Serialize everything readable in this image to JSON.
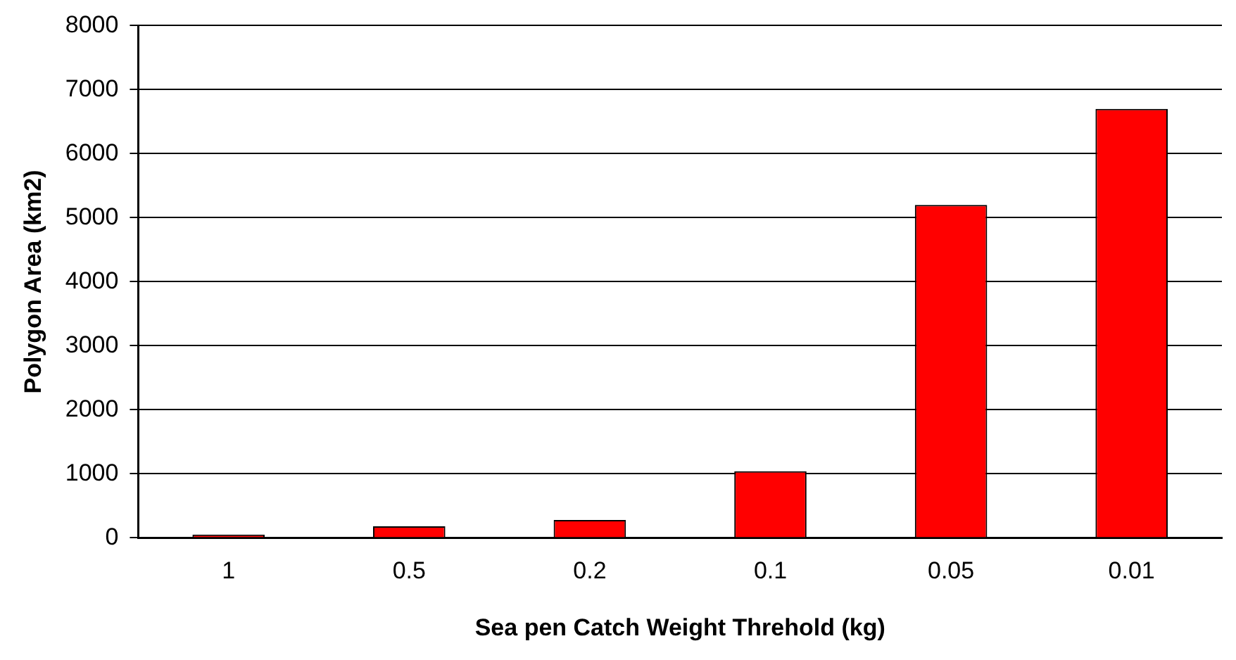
{
  "chart_data": {
    "type": "bar",
    "xlabel": "Sea pen Catch Weight Threhold (kg)",
    "ylabel": "Polygon Area (km2)",
    "categories": [
      "1",
      "0.5",
      "0.2",
      "0.1",
      "0.05",
      "0.01"
    ],
    "values": [
      50,
      180,
      280,
      1040,
      5200,
      6700
    ],
    "color": "#ff0000",
    "ylim": [
      0,
      8000
    ],
    "yticks": [
      0,
      1000,
      2000,
      3000,
      4000,
      5000,
      6000,
      7000,
      8000
    ],
    "grid": "y",
    "legend": false
  }
}
